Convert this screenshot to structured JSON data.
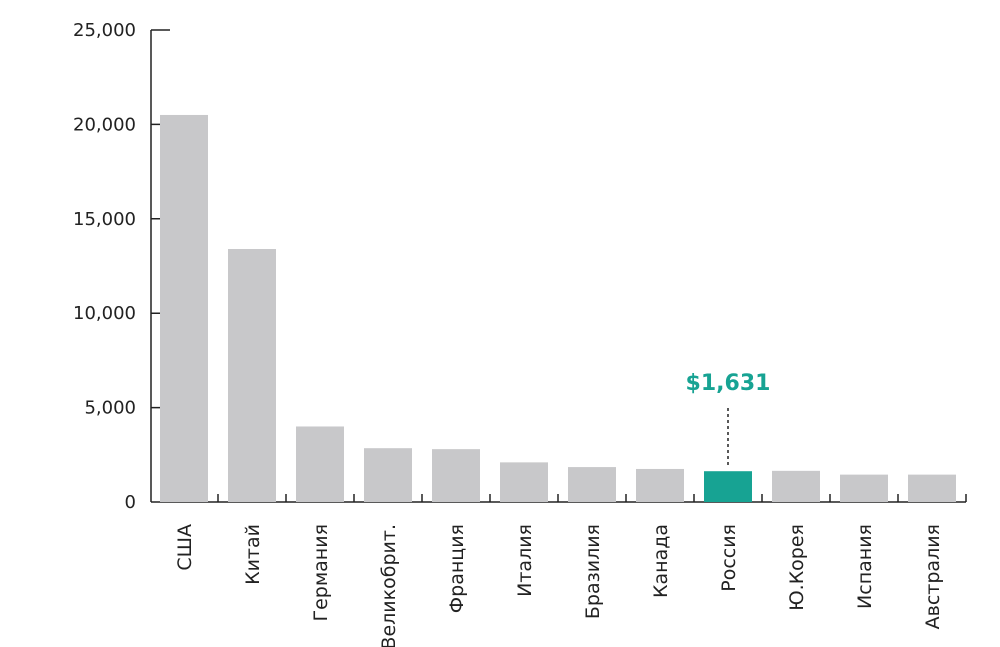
{
  "chart_data": {
    "type": "bar",
    "categories": [
      "США",
      "Китай",
      "Германия",
      "Великобрит.",
      "Франция",
      "Италия",
      "Бразилия",
      "Канада",
      "Россия",
      "Ю.Корея",
      "Испания",
      "Австралия"
    ],
    "values": [
      20500,
      13400,
      4000,
      2850,
      2800,
      2100,
      1850,
      1750,
      1631,
      1650,
      1450,
      1450
    ],
    "ylim": [
      0,
      25000
    ],
    "yticks": [
      0,
      5000,
      10000,
      15000,
      20000,
      25000
    ],
    "ytick_labels": [
      "0",
      "5,000",
      "10,000",
      "15,000",
      "20,000",
      "25,000"
    ],
    "highlight_index": 8,
    "annotation": {
      "category": "Россия",
      "text": "$1,631"
    },
    "colors": {
      "bar": "#c8c8ca",
      "highlight": "#17a393",
      "annotation": "#17a393",
      "axis": "#222222"
    },
    "grid": false,
    "legend": "none"
  }
}
